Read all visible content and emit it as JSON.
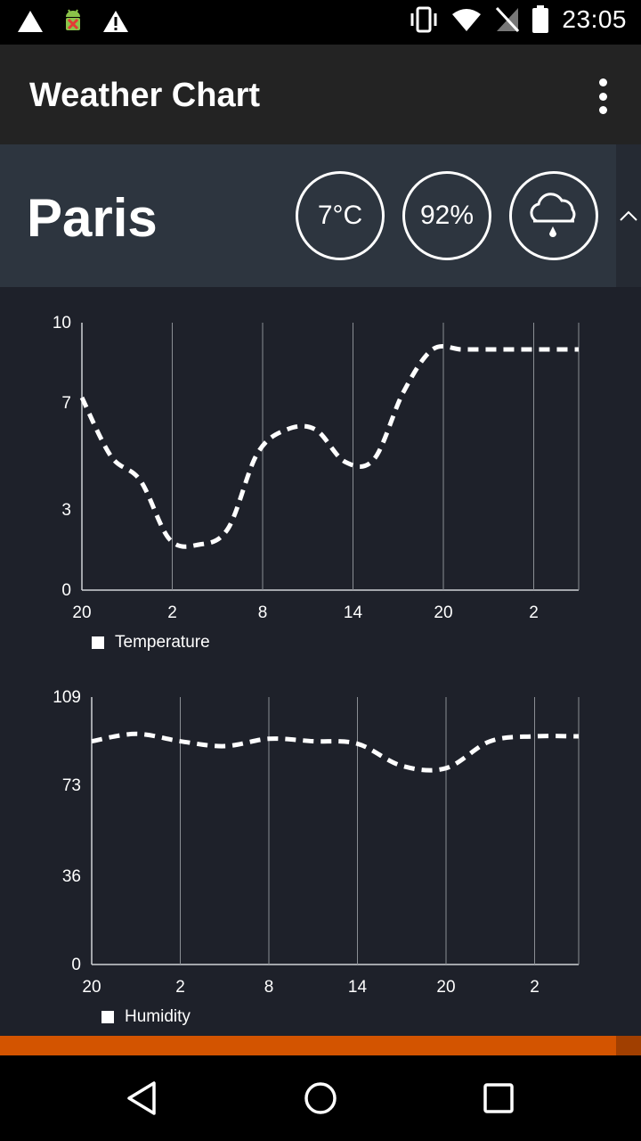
{
  "status_bar": {
    "time": "23:05",
    "left_icons": [
      "warning-triangle-icon",
      "android-debug-icon",
      "alert-icon"
    ],
    "right_icons": [
      "vibrate-icon",
      "wifi-icon",
      "no-sim-icon",
      "battery-icon"
    ]
  },
  "app_bar": {
    "title": "Weather Chart",
    "menu_icon": "overflow-menu-icon"
  },
  "summary": {
    "city": "Paris",
    "temperature": "7°C",
    "humidity": "92%",
    "condition_icon": "rain-cloud-icon",
    "collapse_icon": "chevron-up-icon"
  },
  "chart_data": [
    {
      "type": "line",
      "x_tick_labels": [
        "20",
        "2",
        "8",
        "14",
        "20",
        "2"
      ],
      "y_tick_labels": [
        "0",
        "3",
        "7",
        "10"
      ],
      "ylim": [
        0,
        10
      ],
      "x_hours": [
        0,
        2,
        4,
        6,
        8,
        10,
        12,
        14,
        16,
        18,
        20,
        22,
        24,
        26,
        28,
        30,
        32,
        33
      ],
      "series": [
        {
          "name": "Temperature",
          "values": [
            7.2,
            5.0,
            4.1,
            1.9,
            1.7,
            2.3,
            5.1,
            6.0,
            6.0,
            4.8,
            4.9,
            7.4,
            9.0,
            9.0,
            9.0,
            9.0,
            9.0,
            9.0
          ]
        }
      ],
      "legend_position": "bottom-left",
      "style": "dashed",
      "grid": "vertical"
    },
    {
      "type": "line",
      "x_tick_labels": [
        "20",
        "2",
        "8",
        "14",
        "20",
        "2"
      ],
      "y_tick_labels": [
        "0",
        "36",
        "73",
        "109"
      ],
      "ylim": [
        0,
        109
      ],
      "series": [
        {
          "name": "Humidity",
          "values": [
            91,
            94,
            91,
            89,
            92,
            91,
            90,
            81,
            80,
            91,
            93,
            93
          ]
        }
      ],
      "legend_position": "bottom-left",
      "style": "dashed",
      "grid": "vertical"
    }
  ],
  "nav_bar": {
    "buttons": [
      "back-icon",
      "home-icon",
      "recents-icon"
    ]
  }
}
